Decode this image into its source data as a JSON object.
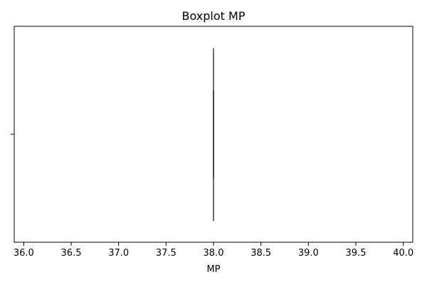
{
  "chart_data": {
    "type": "box",
    "title": "Boxplot MP",
    "xlabel": "MP",
    "ylabel": "",
    "xlim": [
      35.9,
      40.1
    ],
    "x_ticks": [
      "36.0",
      "36.5",
      "37.0",
      "37.5",
      "38.0",
      "38.5",
      "39.0",
      "39.5",
      "40.0"
    ],
    "orientation": "horizontal",
    "grid": false,
    "series": [
      {
        "min": 38.0,
        "q1": 38.0,
        "median": 38.0,
        "q3": 38.0,
        "max": 38.0
      }
    ],
    "colors": {
      "box_line": "#3f3f3f",
      "axes": "#000000"
    }
  }
}
